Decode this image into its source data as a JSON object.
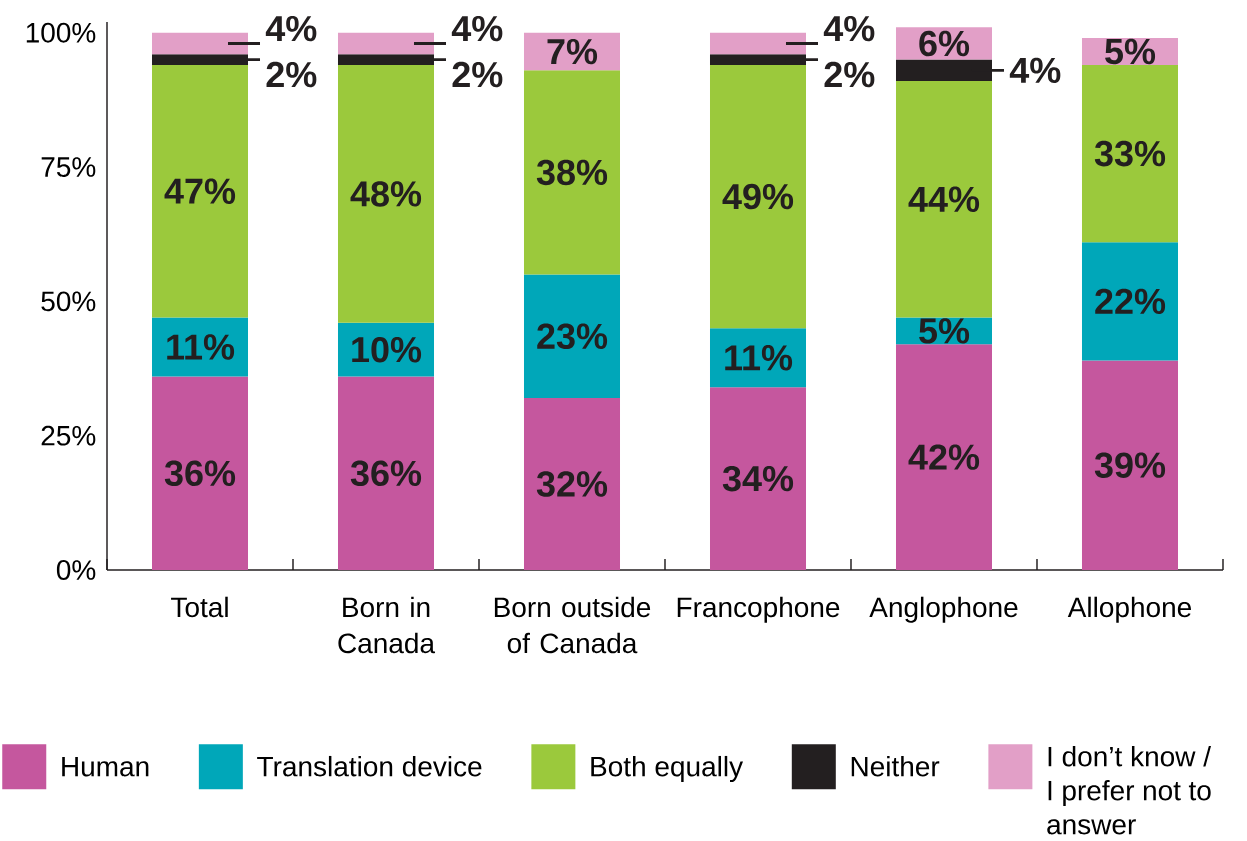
{
  "chart_data": {
    "type": "bar",
    "stacked": true,
    "categories": [
      "Total",
      "Born in Canada",
      "Born outside of Canada",
      "Francophone",
      "Anglophone",
      "Allophone"
    ],
    "series": [
      {
        "name": "Human",
        "color": "#c5579e",
        "values": [
          36,
          36,
          32,
          34,
          42,
          39
        ],
        "value_labels": [
          "36%",
          "36%",
          "32%",
          "34%",
          "42%",
          "39%"
        ]
      },
      {
        "name": "Translation device",
        "color": "#00a7b9",
        "values": [
          11,
          10,
          23,
          11,
          5,
          22
        ],
        "value_labels": [
          "11%",
          "10%",
          "23%",
          "11%",
          "5%",
          "22%"
        ]
      },
      {
        "name": "Both equally",
        "color": "#9bc93c",
        "values": [
          47,
          48,
          38,
          49,
          44,
          33
        ],
        "value_labels": [
          "47%",
          "48%",
          "38%",
          "49%",
          "44%",
          "33%"
        ]
      },
      {
        "name": "Neither",
        "color": "#231f20",
        "values": [
          2,
          2,
          null,
          2,
          4,
          null
        ],
        "value_labels": [
          "2%",
          "2%",
          null,
          "2%",
          "4%",
          null
        ]
      },
      {
        "name": "I don’t know / I prefer not to answer",
        "color": "#e29fc7",
        "values": [
          4,
          4,
          7,
          4,
          6,
          5
        ],
        "value_labels": [
          "4%",
          "4%",
          "7%",
          "4%",
          "6%",
          "5%"
        ]
      }
    ],
    "ylim": [
      0,
      102
    ],
    "yticks": [
      {
        "value": 0,
        "label": "0%"
      },
      {
        "value": 25,
        "label": "25%"
      },
      {
        "value": 50,
        "label": "50%"
      },
      {
        "value": 75,
        "label": "75%"
      },
      {
        "value": 100,
        "label": "100%"
      }
    ],
    "legend": "bottom"
  }
}
